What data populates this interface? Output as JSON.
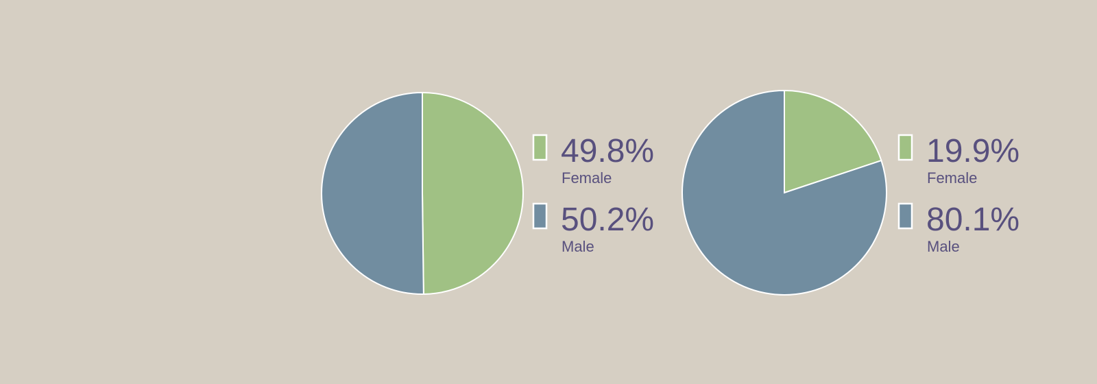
{
  "chart_data": [
    {
      "type": "pie",
      "categories": [
        "Female",
        "Male"
      ],
      "values": [
        49.8,
        50.2
      ],
      "value_labels": [
        "49.8%",
        "50.2%"
      ],
      "colors": [
        "#a0c184",
        "#718da0"
      ]
    },
    {
      "type": "pie",
      "categories": [
        "Female",
        "Male"
      ],
      "values": [
        19.9,
        80.1
      ],
      "value_labels": [
        "19.9%",
        "80.1%"
      ],
      "colors": [
        "#a0c184",
        "#718da0"
      ]
    }
  ]
}
